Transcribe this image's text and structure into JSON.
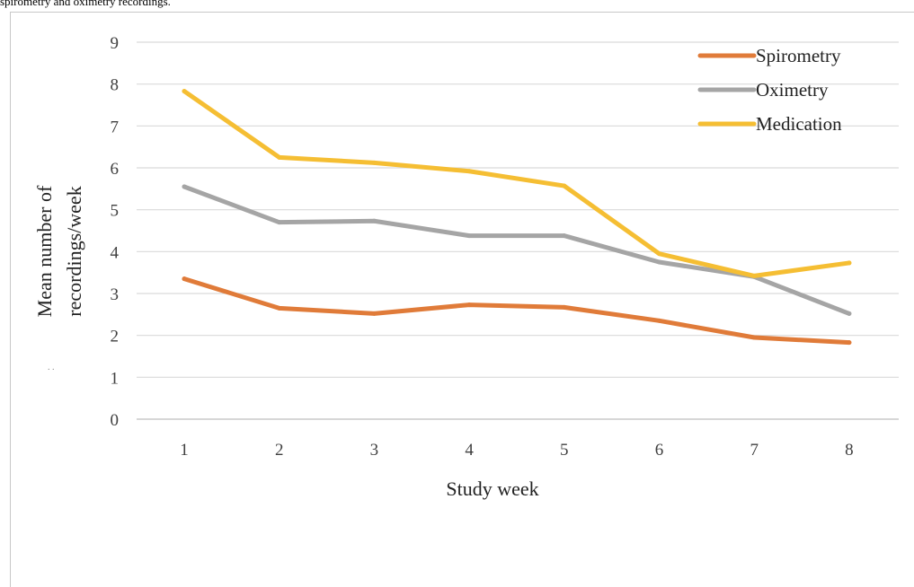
{
  "caption": "spirometry and oximetry recordings.",
  "chart_data": {
    "type": "line",
    "xlabel": "Study week",
    "ylabel_line1": "Mean number of",
    "ylabel_line2": "recordings/week",
    "ylim": [
      0,
      9
    ],
    "yticks": [
      0,
      1,
      2,
      3,
      4,
      5,
      6,
      7,
      8,
      9
    ],
    "categories": [
      "1",
      "2",
      "3",
      "4",
      "5",
      "6",
      "7",
      "8"
    ],
    "grid": "horizontal",
    "legend_position": "top-right",
    "series": [
      {
        "name": "Spirometry",
        "color": "#E07B39",
        "values": [
          3.35,
          2.65,
          2.52,
          2.73,
          2.67,
          2.35,
          1.95,
          1.83
        ]
      },
      {
        "name": "Oximetry",
        "color": "#A5A5A5",
        "values": [
          5.55,
          4.7,
          4.73,
          4.38,
          4.38,
          3.75,
          3.4,
          2.52
        ]
      },
      {
        "name": "Medication",
        "color": "#F5BE33",
        "values": [
          7.83,
          6.25,
          6.12,
          5.92,
          5.57,
          3.95,
          3.42,
          3.73
        ]
      }
    ]
  }
}
